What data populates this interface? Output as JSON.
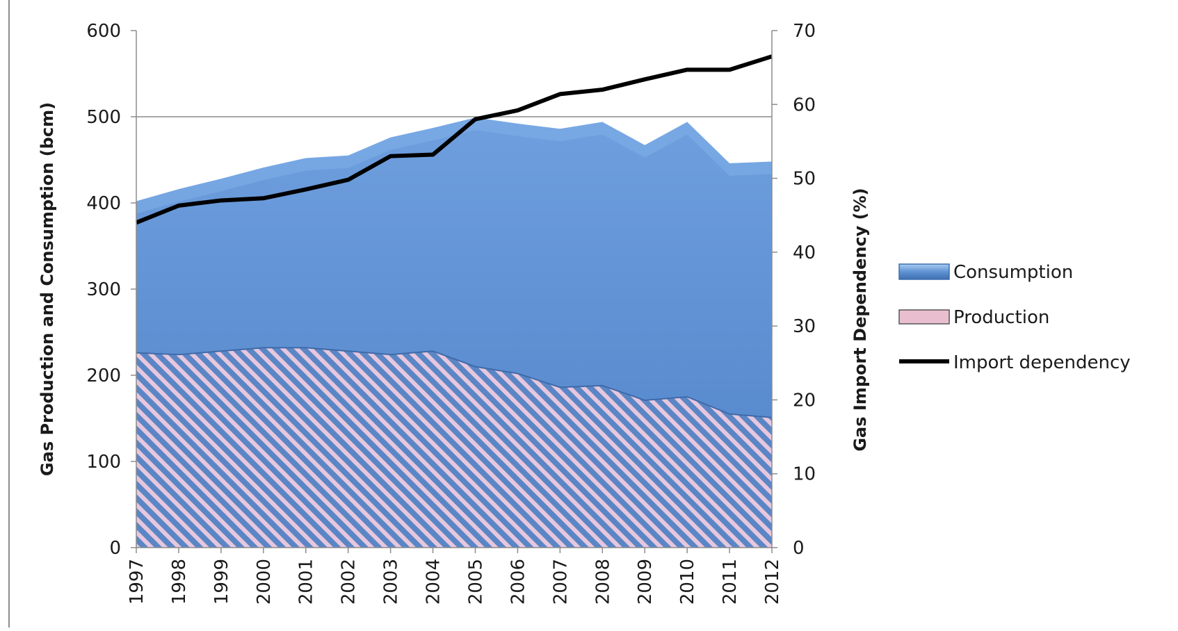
{
  "chart_data": {
    "type": "area",
    "x": [
      "1997",
      "1998",
      "1999",
      "2000",
      "2001",
      "2002",
      "2003",
      "2004",
      "2005",
      "2006",
      "2007",
      "2008",
      "2009",
      "2010",
      "2011",
      "2012"
    ],
    "series": [
      {
        "name": "Consumption",
        "axis": "left",
        "kind": "area",
        "values": [
          402,
          416,
          428,
          441,
          452,
          455,
          476,
          487,
          499,
          492,
          486,
          494,
          467,
          494,
          446,
          448
        ]
      },
      {
        "name": "Production",
        "axis": "left",
        "kind": "area",
        "values": [
          226,
          224,
          228,
          232,
          232,
          228,
          224,
          228,
          210,
          202,
          186,
          188,
          171,
          175,
          155,
          151
        ]
      },
      {
        "name": "Import dependency",
        "axis": "right",
        "kind": "line",
        "values": [
          44,
          46.3,
          47,
          47.3,
          48.5,
          49.8,
          53,
          53.2,
          58,
          59.2,
          61.4,
          62,
          63.4,
          64.7,
          64.7,
          66.5
        ]
      }
    ],
    "ylabel": "Gas Production and Consumption (bcm)",
    "y2label": "Gas Import Dependency (%)",
    "ylim": [
      0,
      600
    ],
    "yticks": [
      "0",
      "100",
      "200",
      "300",
      "400",
      "500",
      "600"
    ],
    "y2lim": [
      0,
      70
    ],
    "y2ticks": [
      "0",
      "10",
      "20",
      "30",
      "40",
      "50",
      "60",
      "70"
    ],
    "grid": "horizontal at 500",
    "legend": "right",
    "colors": {
      "consumption": "#5588cc",
      "production_stripe_a": "#5b86c6",
      "production_stripe_b": "#e7c7dd",
      "line": "#000000",
      "axis": "#8c8c8c"
    }
  }
}
